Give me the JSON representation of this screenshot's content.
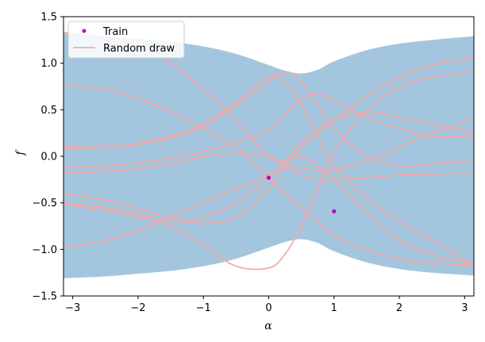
{
  "chart_data": {
    "type": "line",
    "title": "",
    "xlabel": "α",
    "ylabel": "f",
    "xlim": [
      -3.14159,
      3.14159
    ],
    "ylim": [
      -1.5,
      1.5
    ],
    "xticks": [
      -3,
      -2,
      -1,
      0,
      1,
      2,
      3
    ],
    "xtick_labels": [
      "−3",
      "−2",
      "−1",
      "0",
      "1",
      "2",
      "3"
    ],
    "yticks": [
      -1.5,
      -1.0,
      -0.5,
      0.0,
      0.5,
      1.0,
      1.5
    ],
    "ytick_labels": [
      "−1.5",
      "−1.0",
      "−0.5",
      "0.0",
      "0.5",
      "1.0",
      "1.5"
    ],
    "grid": false,
    "legend": {
      "location": "upper-left",
      "entries": [
        {
          "label": "Train",
          "marker": "point",
          "color": "#c000c0"
        },
        {
          "label": "Random draw",
          "marker": "line",
          "color": "#f4a9a8"
        }
      ]
    },
    "colors": {
      "band": "#a3c6de",
      "train": "#c000c0",
      "draw": "#f4a9a8"
    },
    "band": {
      "x": [
        -3.14,
        -2.5,
        -2.0,
        -1.5,
        -1.0,
        -0.5,
        0.0,
        0.25,
        0.5,
        0.75,
        1.0,
        1.5,
        2.0,
        2.5,
        3.14
      ],
      "upper": [
        1.32,
        1.29,
        1.26,
        1.23,
        1.18,
        1.1,
        0.98,
        0.92,
        0.89,
        0.93,
        1.02,
        1.14,
        1.21,
        1.25,
        1.29
      ],
      "lower": [
        -1.31,
        -1.29,
        -1.26,
        -1.23,
        -1.18,
        -1.1,
        -0.98,
        -0.92,
        -0.89,
        -0.93,
        -1.02,
        -1.14,
        -1.21,
        -1.25,
        -1.28
      ]
    },
    "train_points": [
      {
        "x": 0.0,
        "y": -0.23
      },
      {
        "x": 1.0,
        "y": -0.59
      }
    ],
    "draws": {
      "x": [
        -3.14,
        -2.5,
        -2.0,
        -1.5,
        -1.0,
        -0.5,
        0.0,
        0.25,
        0.5,
        0.75,
        1.0,
        1.5,
        2.0,
        2.5,
        3.14
      ],
      "series": [
        [
          1.33,
          1.28,
          1.18,
          1.0,
          0.72,
          0.38,
          0.0,
          -0.05,
          0.0,
          -0.1,
          -0.25,
          -0.6,
          -0.9,
          -1.05,
          -1.16
        ],
        [
          0.77,
          0.72,
          0.62,
          0.48,
          0.3,
          0.1,
          -0.23,
          -0.4,
          -0.55,
          -0.7,
          -0.85,
          -1.0,
          -1.1,
          -1.14,
          -1.17
        ],
        [
          0.08,
          0.1,
          0.14,
          0.22,
          0.35,
          0.58,
          0.86,
          0.8,
          0.55,
          0.22,
          -0.1,
          -0.45,
          -0.7,
          -0.9,
          -1.17
        ],
        [
          0.1,
          0.1,
          0.13,
          0.2,
          0.32,
          0.55,
          0.8,
          0.9,
          0.8,
          0.55,
          0.3,
          0.0,
          -0.1,
          -0.08,
          -0.05
        ],
        [
          -0.12,
          -0.1,
          -0.07,
          -0.02,
          0.05,
          0.15,
          0.28,
          0.45,
          0.62,
          0.67,
          0.6,
          0.42,
          0.3,
          0.22,
          0.22
        ],
        [
          -0.18,
          -0.16,
          -0.13,
          -0.08,
          0.0,
          0.03,
          0.0,
          -0.1,
          -0.2,
          -0.25,
          -0.25,
          -0.23,
          -0.2,
          -0.19,
          -0.18
        ],
        [
          -0.5,
          -0.55,
          -0.62,
          -0.7,
          -0.65,
          -0.5,
          -0.23,
          -0.05,
          0.15,
          0.3,
          0.4,
          0.48,
          0.42,
          0.35,
          0.25
        ],
        [
          -0.4,
          -0.47,
          -0.56,
          -0.66,
          -0.72,
          -0.65,
          -0.35,
          -0.1,
          0.1,
          0.25,
          0.38,
          0.65,
          0.85,
          0.98,
          1.06
        ],
        [
          -0.52,
          -0.58,
          -0.65,
          -0.75,
          -0.95,
          -1.18,
          -1.2,
          -1.05,
          -0.75,
          -0.35,
          0.05,
          0.48,
          0.75,
          0.85,
          0.9
        ],
        [
          -0.98,
          -0.9,
          -0.8,
          -0.65,
          -0.5,
          -0.35,
          -0.2,
          -0.12,
          -0.12,
          -0.15,
          -0.15,
          -0.05,
          0.1,
          0.25,
          0.4
        ]
      ]
    }
  }
}
